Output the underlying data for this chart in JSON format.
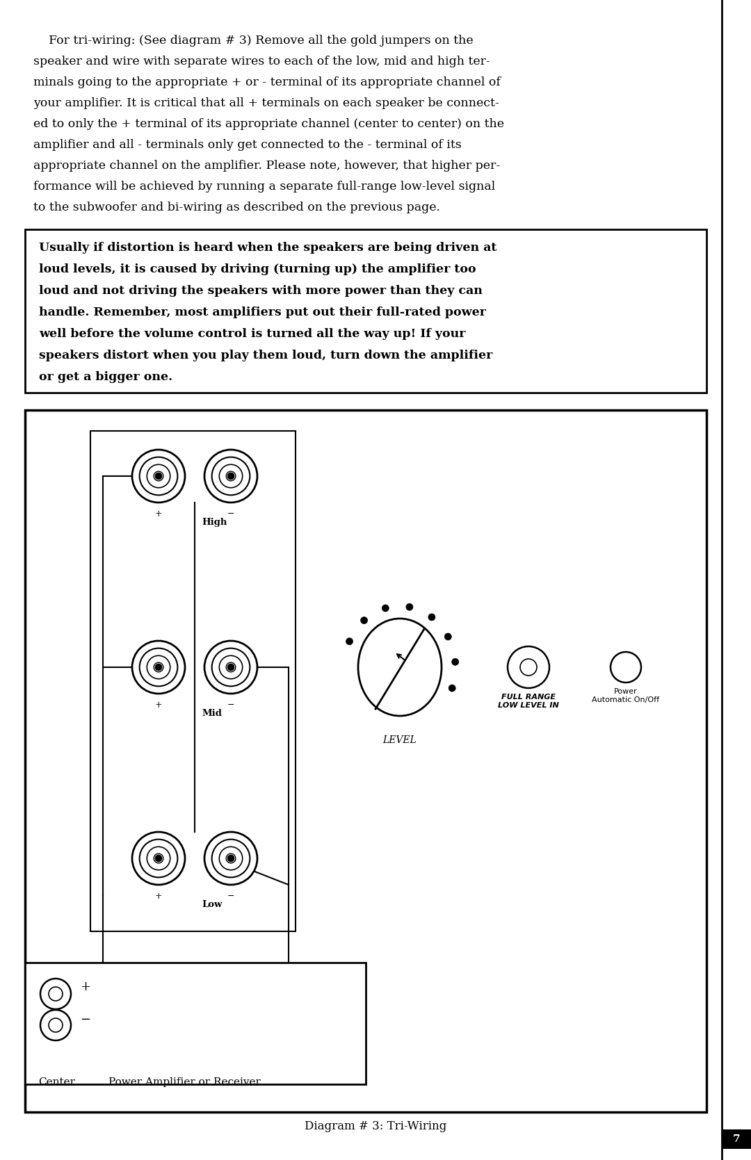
{
  "bg_color": "#ffffff",
  "page_width": 10.8,
  "page_height": 16.69,
  "paragraph_text_lines": [
    "    For tri-wiring: (See diagram # 3) Remove all the gold jumpers on the",
    "speaker and wire with separate wires to each of the low, mid and high ter-",
    "minals going to the appropriate + or - terminal of its appropriate channel of",
    "your amplifier. It is critical that all + terminals on each speaker be connect-",
    "ed to only the + terminal of its appropriate channel (center to center) on the",
    "amplifier and all - terminals only get connected to the - terminal of its",
    "appropriate channel on the amplifier. Please note, however, that higher per-",
    "formance will be achieved by running a separate full-range low-level signal",
    "to the subwoofer and bi-wiring as described on the previous page."
  ],
  "bold_box_text_lines": [
    "Usually if distortion is heard when the speakers are being driven at",
    "loud levels, it is caused by driving (turning up) the amplifier too",
    "loud and not driving the speakers with more power than they can",
    "handle. Remember, most amplifiers put out their full-rated power",
    "well before the volume control is turned all the way up! If your",
    "speakers distort when you play them loud, turn down the amplifier",
    "or get a bigger one."
  ],
  "diagram_caption": "Diagram # 3: Tri-Wiring",
  "page_number": "7",
  "text_color": "#000000"
}
